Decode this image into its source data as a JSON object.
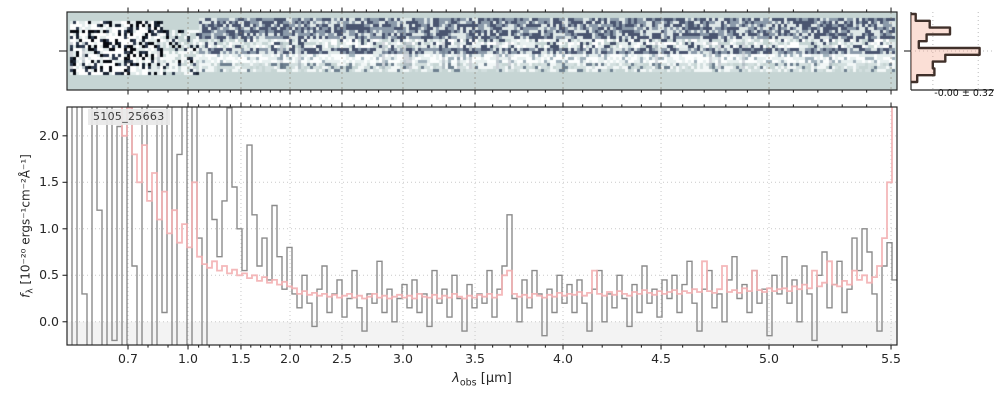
{
  "figure": {
    "object_label": "5105_25663",
    "hist_annotation": "-0.00 ± 0.32",
    "xlabel": {
      "lambda": "λ",
      "sub": "obs",
      "unit": " [μm]"
    },
    "ylabel": {
      "f": "f",
      "sub": "λ",
      "rest": " [10⁻²⁰ ergs⁻¹cm⁻²Å⁻¹]"
    }
  },
  "chart_data": {
    "type": "line",
    "title": "",
    "label": "5105_25663",
    "xlabel": "λ_obs [μm]",
    "ylabel": "f_λ [10^-20 ergs^-1 cm^-2 Å^-1]",
    "x_scale": "nonlinear prism dispersion; tick positions stored as fractions of axis width",
    "xlim_um": [
      0.6,
      5.53
    ],
    "ylim": [
      -0.25,
      2.31
    ],
    "grid": "dotted, both axes",
    "legend": "none",
    "x_ticks": {
      "labels": [
        "0.7",
        "1.0",
        "1.5",
        "2.0",
        "2.5",
        "3.0",
        "3.5",
        "4.0",
        "4.5",
        "5.0",
        "5.5"
      ],
      "values": [
        0.7,
        1.0,
        1.5,
        2.0,
        2.5,
        3.0,
        3.5,
        4.0,
        4.5,
        5.0,
        5.5
      ],
      "frac": [
        0.0735,
        0.1458,
        0.2096,
        0.2687,
        0.3313,
        0.4048,
        0.4916,
        0.5976,
        0.7157,
        0.8458,
        0.9928
      ]
    },
    "x_minor_step_um": 0.1,
    "y_ticks": {
      "labels": [
        "0.0",
        "0.5",
        "1.0",
        "1.5",
        "2.0"
      ],
      "values": [
        0.0,
        0.5,
        1.0,
        1.5,
        2.0
      ]
    },
    "series": [
      {
        "name": "observed-spectrum",
        "color": "#8b8b8b",
        "style": "step",
        "note": "values evenly spaced across axis (detector pixel space); clipped at ylim",
        "values": [
          2.6,
          -0.4,
          3,
          0.3,
          -0.7,
          2.4,
          1.2,
          -0.5,
          2.8,
          -0.2,
          2.1,
          -0.8,
          2.5,
          0.6,
          -0.6,
          2.9,
          1.4,
          -0.3,
          2.2,
          0.1,
          2.7,
          -0.5,
          1.8,
          3,
          -0.4,
          2.4,
          0.9,
          -0.3,
          1.6,
          1.1,
          0.7,
          1.3,
          2.3,
          1.45,
          1,
          0.55,
          1.9,
          1.15,
          0.6,
          0.9,
          0.45,
          1.25,
          0.7,
          0.35,
          0.8,
          0.3,
          0.15,
          0.5,
          0.2,
          -0.05,
          0.35,
          0.6,
          0.1,
          0.3,
          0.45,
          0.05,
          0.25,
          0.55,
          0.15,
          -0.1,
          0.3,
          0.2,
          0.65,
          0.1,
          0.35,
          0,
          0.25,
          0.4,
          0.15,
          0.45,
          0.1,
          0.3,
          -0.05,
          0.55,
          0.2,
          0.35,
          0.05,
          0.5,
          0.25,
          -0.1,
          0.4,
          0.15,
          0.3,
          0.2,
          0.55,
          0.05,
          0.35,
          0.6,
          1.15,
          0.25,
          0,
          0.45,
          0.15,
          0.55,
          0.3,
          -0.15,
          0.35,
          0.1,
          0.5,
          0.2,
          0.4,
          0.1,
          0.45,
          0.2,
          -0.1,
          0.35,
          0.55,
          0,
          0.3,
          0.15,
          0.5,
          0.25,
          -0.05,
          0.4,
          0.1,
          0.6,
          0.2,
          0.35,
          0.05,
          0.45,
          0.25,
          0.5,
          0.1,
          0.4,
          0.65,
          0.2,
          -0.1,
          0.35,
          0.55,
          0.15,
          0.3,
          0,
          0.45,
          0.7,
          0.25,
          0.4,
          0.1,
          0.55,
          0.2,
          0.35,
          -0.15,
          0.5,
          0.3,
          0.7,
          0.2,
          0.45,
          0,
          0.6,
          0.3,
          -0.2,
          0.5,
          0.75,
          0.15,
          0.4,
          0.65,
          0.1,
          0.35,
          0.9,
          0.55,
          1,
          0.75,
          0.3,
          -0.1,
          0.6,
          0.85,
          0.45
        ]
      },
      {
        "name": "uncertainty",
        "color": "#f3b0b3",
        "style": "step",
        "opacity": 0.9,
        "values": [
          3,
          3,
          3,
          3,
          3,
          3,
          3,
          3,
          2.8,
          2.6,
          2.4,
          2,
          2.3,
          1.8,
          1.5,
          1.9,
          1.3,
          1.6,
          1.1,
          1.4,
          0.95,
          1.2,
          0.85,
          1.05,
          0.8,
          1.5,
          0.7,
          0.62,
          0.58,
          0.65,
          0.55,
          0.6,
          0.52,
          0.56,
          0.5,
          0.52,
          0.47,
          0.5,
          0.44,
          0.48,
          0.42,
          0.45,
          0.4,
          0.43,
          0.38,
          0.36,
          0.3,
          0.33,
          0.29,
          0.31,
          0.28,
          0.3,
          0.27,
          0.29,
          0.26,
          0.28,
          0.3,
          0.26,
          0.28,
          0.25,
          0.27,
          0.3,
          0.26,
          0.28,
          0.25,
          0.27,
          0.29,
          0.26,
          0.28,
          0.25,
          0.3,
          0.27,
          0.26,
          0.29,
          0.25,
          0.28,
          0.26,
          0.3,
          0.27,
          0.25,
          0.28,
          0.26,
          0.29,
          0.27,
          0.3,
          0.26,
          0.29,
          0.5,
          0.55,
          0.3,
          0.27,
          0.29,
          0.26,
          0.3,
          0.28,
          0.26,
          0.29,
          0.27,
          0.31,
          0.28,
          0.3,
          0.29,
          0.32,
          0.28,
          0.31,
          0.55,
          0.3,
          0.28,
          0.32,
          0.29,
          0.33,
          0.3,
          0.28,
          0.32,
          0.3,
          0.34,
          0.31,
          0.29,
          0.33,
          0.3,
          0.32,
          0.34,
          0.3,
          0.33,
          0.31,
          0.35,
          0.32,
          0.65,
          0.33,
          0.31,
          0.35,
          0.6,
          0.32,
          0.34,
          0.31,
          0.36,
          0.33,
          0.55,
          0.34,
          0.32,
          0.36,
          0.33,
          0.35,
          0.36,
          0.33,
          0.38,
          0.35,
          0.4,
          0.36,
          0.55,
          0.38,
          0.42,
          0.65,
          0.4,
          0.38,
          0.44,
          0.4,
          0.55,
          0.45,
          0.5,
          0.42,
          0.48,
          0.6,
          0.9,
          1.5,
          2.4
        ]
      }
    ],
    "zero_shade_color": "#f3f3f3",
    "panel_2d": {
      "description": "2D rectified spectrum image, noise pixels over pale teal background",
      "bg": "#c6d5d4",
      "seed": 7
    },
    "residual_hist": {
      "annotation": "-0.00 ± 0.32",
      "mean": -0.0,
      "sigma": 0.32,
      "orientation": "horizontal",
      "bin_fracs": [
        0.06,
        0.24,
        0.5,
        0.2,
        0.1,
        0.88,
        0.44,
        0.28,
        0.3,
        0.08
      ],
      "fill": "rgba(244,162,138,0.35)",
      "edge": "#40302a"
    }
  }
}
